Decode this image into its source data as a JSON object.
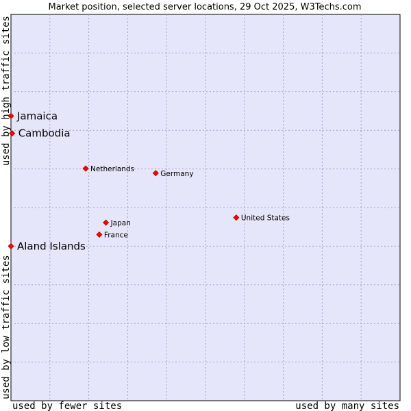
{
  "chart_data": {
    "type": "scatter",
    "title": "Market position, selected server locations, 29 Oct 2025, W3Techs.com",
    "xlabel_left": "used by fewer sites",
    "xlabel_right": "used by many sites",
    "ylabel_bottom": "used by low traffic sites",
    "ylabel_top": "used by high traffic sites",
    "xlim": [
      0,
      100
    ],
    "ylim": [
      0,
      100
    ],
    "grid": true,
    "point_color": "#ff0000",
    "plot_bg": "#e6e6fa",
    "grid_color": "#a0a0c0",
    "points": [
      {
        "label": "Jamaica",
        "x": 0,
        "y": 73.7,
        "emphasis": true
      },
      {
        "label": "Cambodia",
        "x": 0.3,
        "y": 69.2,
        "emphasis": true
      },
      {
        "label": "Netherlands",
        "x": 19.2,
        "y": 60.1,
        "emphasis": false
      },
      {
        "label": "Germany",
        "x": 37.2,
        "y": 58.9,
        "emphasis": false
      },
      {
        "label": "United States",
        "x": 57.9,
        "y": 47.4,
        "emphasis": false
      },
      {
        "label": "Japan",
        "x": 24.4,
        "y": 46.1,
        "emphasis": false
      },
      {
        "label": "France",
        "x": 22.7,
        "y": 43.0,
        "emphasis": false
      },
      {
        "label": "Aland Islands",
        "x": 0,
        "y": 40.0,
        "emphasis": true
      }
    ]
  }
}
